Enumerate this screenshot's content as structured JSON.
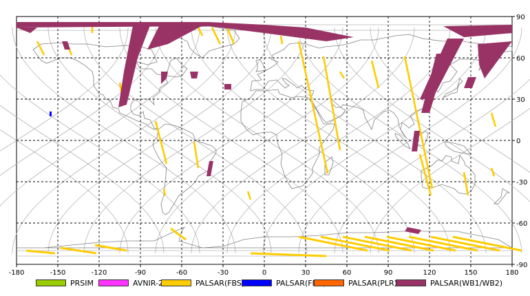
{
  "map": {
    "x_ticks": [
      "-180",
      "-150",
      "-120",
      "-90",
      "-60",
      "-30",
      "0",
      "30",
      "60",
      "90",
      "120",
      "150",
      "180"
    ],
    "y_ticks": [
      "90",
      "60",
      "30",
      "0",
      "-30",
      "-60",
      "-90"
    ],
    "lon_range": [
      -180,
      180
    ],
    "lat_range": [
      -90,
      90
    ],
    "grid": "dashed",
    "background": "#ffffff",
    "coastline_color": "#808080",
    "orbit_track_color": "#b4b4b4"
  },
  "legend": [
    {
      "label": "PRSIM",
      "color": "#99cc00"
    },
    {
      "label": "AVNIR-2",
      "color": "#ff33ff"
    },
    {
      "label": "PALSAR(FBS)",
      "color": "#ffcc00"
    },
    {
      "label": "PALSAR(FBD)",
      "color": "#0000ff"
    },
    {
      "label": "PALSAR(PLR)",
      "color": "#ff6600"
    },
    {
      "label": "PALSAR(WB1/WB2)",
      "color": "#993366"
    }
  ]
}
